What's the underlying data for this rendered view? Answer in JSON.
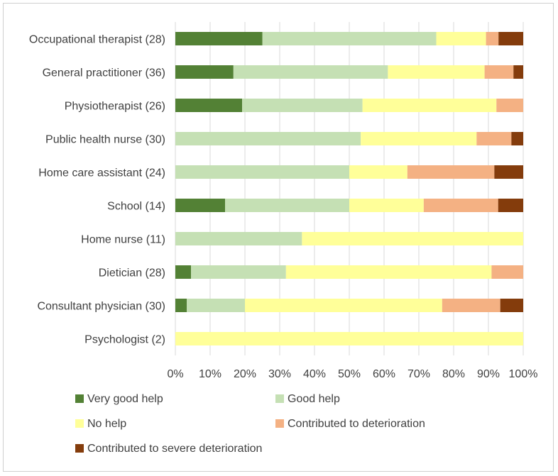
{
  "chart_data": {
    "type": "bar",
    "orientation": "horizontal",
    "stacked": "percent",
    "categories": [
      "Occupational therapist (28)",
      "General practitioner (36)",
      "Physiotherapist (26)",
      "Public health nurse (30)",
      "Home care assistant (24)",
      "School (14)",
      "Home nurse (11)",
      "Dietician (28)",
      "Consultant physician (30)",
      "Psychologist (2)"
    ],
    "series": [
      {
        "name": "Very good help",
        "color": "#538135",
        "values": [
          25.0,
          16.7,
          19.2,
          0,
          0,
          14.3,
          0,
          4.5,
          3.3,
          0
        ]
      },
      {
        "name": "Good help",
        "color": "#c5e0b4",
        "values": [
          50.0,
          44.4,
          34.6,
          53.3,
          50.0,
          35.7,
          36.4,
          27.3,
          16.7,
          0
        ]
      },
      {
        "name": "No help",
        "color": "#ffff99",
        "values": [
          14.3,
          27.8,
          38.5,
          33.3,
          16.7,
          21.4,
          63.6,
          59.1,
          56.7,
          100
        ]
      },
      {
        "name": "Contributed to deterioration",
        "color": "#f4b183",
        "values": [
          3.6,
          8.3,
          7.7,
          10.0,
          25.0,
          21.4,
          0,
          9.1,
          16.7,
          0
        ]
      },
      {
        "name": "Contributed to severe deterioration",
        "color": "#843c0c",
        "values": [
          7.1,
          2.8,
          0,
          3.4,
          8.3,
          7.2,
          0,
          0,
          6.6,
          0
        ]
      }
    ],
    "x_ticks": [
      "0%",
      "10%",
      "20%",
      "30%",
      "40%",
      "50%",
      "60%",
      "70%",
      "80%",
      "90%",
      "100%"
    ],
    "xlim": [
      0,
      100
    ],
    "grid": true,
    "legend_position": "bottom"
  }
}
